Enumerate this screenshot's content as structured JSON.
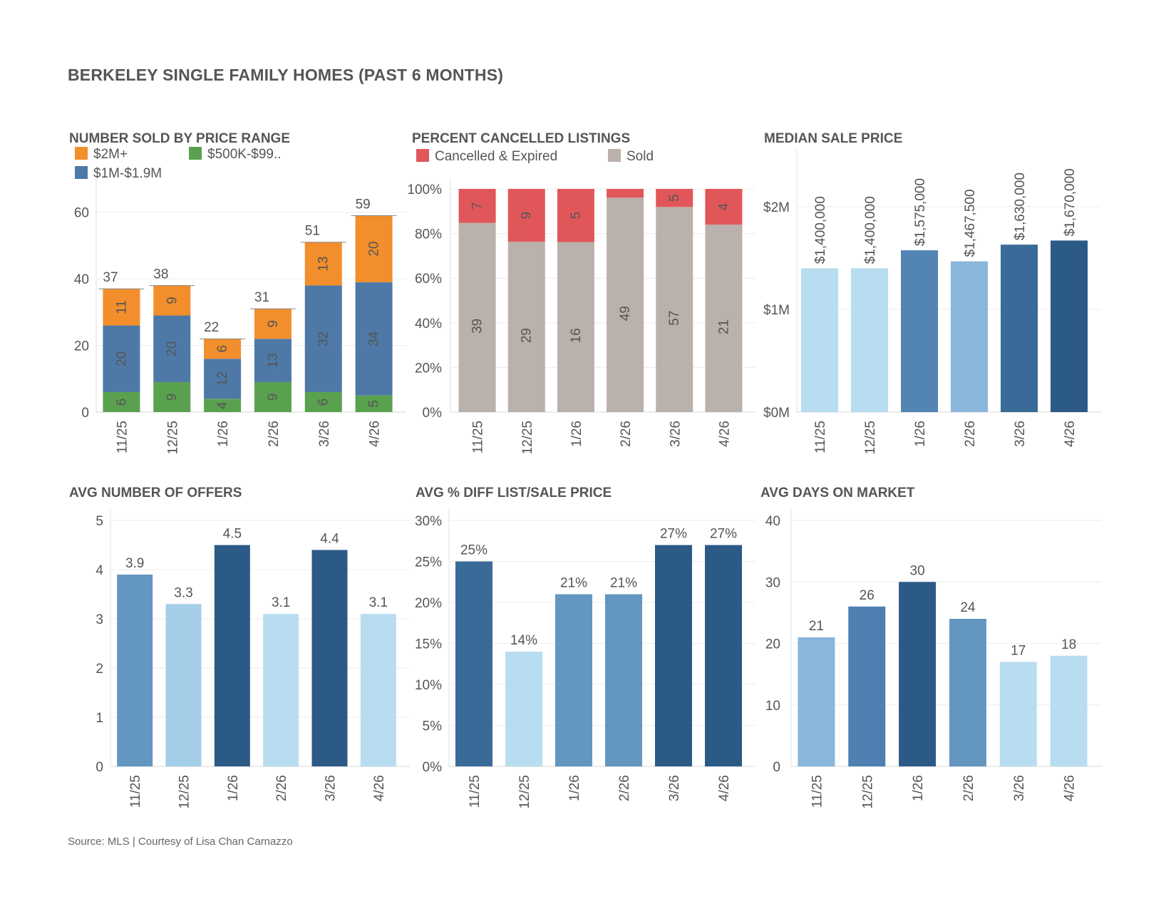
{
  "page": {
    "title": "BERKELEY SINGLE FAMILY HOMES (PAST 6 MONTHS)",
    "source": "Source: MLS | Courtesy of Lisa Chan Carnazzo"
  },
  "colors": {
    "orange": "#F28E2B",
    "blue": "#4E79A7",
    "green": "#59A14F",
    "red": "#E15759",
    "gray": "#BAB0AC",
    "navy": "#2C5A86",
    "dark_blue": "#3A6A98",
    "mid_blue": "#5A8EBB",
    "light_blue": "#A4CEE8",
    "pale_blue": "#B8DDF0"
  },
  "chart_data": [
    {
      "id": "sold",
      "type": "bar",
      "stacked": true,
      "title": "NUMBER SOLD BY PRICE RANGE",
      "categories": [
        "11/25",
        "12/25",
        "1/26",
        "2/26",
        "3/26",
        "4/26"
      ],
      "series": [
        {
          "name": "$500K-$99..",
          "color": "#59A14F",
          "values": [
            6,
            9,
            4,
            9,
            6,
            5
          ]
        },
        {
          "name": "$1M-$1.9M",
          "color": "#4E79A7",
          "values": [
            20,
            20,
            12,
            13,
            32,
            34
          ]
        },
        {
          "name": "$2M+",
          "color": "#F28E2B",
          "values": [
            11,
            9,
            6,
            9,
            13,
            20
          ]
        }
      ],
      "totals": [
        "37",
        "38",
        "22",
        "31",
        "51",
        "59"
      ],
      "ylim": [
        0,
        67
      ],
      "yticks": [
        0,
        20,
        40,
        60
      ],
      "legend": [
        {
          "label": "$2M+",
          "color": "#F28E2B"
        },
        {
          "label": "$500K-$99..",
          "color": "#59A14F"
        },
        {
          "label": "$1M-$1.9M",
          "color": "#4E79A7"
        }
      ],
      "grid": true
    },
    {
      "id": "cancelled",
      "type": "bar",
      "stacked": true,
      "percent": true,
      "title": "PERCENT CANCELLED LISTINGS",
      "categories": [
        "11/25",
        "12/25",
        "1/26",
        "2/26",
        "3/26",
        "4/26"
      ],
      "series": [
        {
          "name": "Sold",
          "color": "#BAB0AC",
          "values": [
            39,
            29,
            16,
            49,
            57,
            21
          ]
        },
        {
          "name": "Cancelled & Expired",
          "color": "#E15759",
          "values": [
            7,
            9,
            5,
            2,
            5,
            4
          ]
        }
      ],
      "segment_labels": [
        [
          "39",
          "29",
          "16",
          "49",
          "57",
          "21"
        ],
        [
          "7",
          "9",
          "5",
          "",
          "5",
          "4"
        ]
      ],
      "ylim": [
        0,
        100
      ],
      "yticks": [
        "0%",
        "20%",
        "40%",
        "60%",
        "80%",
        "100%"
      ],
      "legend": [
        {
          "label": "Cancelled & Expired",
          "color": "#E15759"
        },
        {
          "label": "Sold",
          "color": "#BAB0AC"
        }
      ],
      "grid": true
    },
    {
      "id": "median",
      "type": "bar",
      "title": "MEDIAN SALE PRICE",
      "categories": [
        "11/25",
        "12/25",
        "1/26",
        "2/26",
        "3/26",
        "4/26"
      ],
      "values": [
        1400000,
        1400000,
        1575000,
        1467500,
        1630000,
        1670000
      ],
      "labels": [
        "$1,400,000",
        "$1,400,000",
        "$1,575,000",
        "$1,467,500",
        "$1,630,000",
        "$1,670,000"
      ],
      "colors": [
        "#B8DDF0",
        "#B8DDF0",
        "#5284B4",
        "#89B6DA",
        "#3A6A98",
        "#2C5A86"
      ],
      "ylim": [
        0,
        2450000
      ],
      "yticks": [
        {
          "v": 0,
          "t": "$0M"
        },
        {
          "v": 1000000,
          "t": "$1M"
        },
        {
          "v": 2000000,
          "t": "$2M"
        }
      ],
      "grid": true
    },
    {
      "id": "offers",
      "type": "bar",
      "title": "AVG NUMBER OF OFFERS",
      "categories": [
        "11/25",
        "12/25",
        "1/26",
        "2/26",
        "3/26",
        "4/26"
      ],
      "values": [
        3.9,
        3.3,
        4.5,
        3.1,
        4.4,
        3.1
      ],
      "labels": [
        "3.9",
        "3.3",
        "4.5",
        "3.1",
        "4.4",
        "3.1"
      ],
      "colors": [
        "#6496C2",
        "#A4CEE8",
        "#2C5A86",
        "#B8DDF0",
        "#2C5A86",
        "#B8DDF0"
      ],
      "ylim": [
        0,
        5
      ],
      "yticks": [
        {
          "v": 0,
          "t": "0"
        },
        {
          "v": 1,
          "t": "1"
        },
        {
          "v": 2,
          "t": "2"
        },
        {
          "v": 3,
          "t": "3"
        },
        {
          "v": 4,
          "t": "4"
        },
        {
          "v": 5,
          "t": "5"
        }
      ],
      "grid": true
    },
    {
      "id": "diff",
      "type": "bar",
      "title": "AVG % DIFF LIST/SALE PRICE",
      "categories": [
        "11/25",
        "12/25",
        "1/26",
        "2/26",
        "3/26",
        "4/26"
      ],
      "values": [
        25,
        14,
        21,
        21,
        27,
        27
      ],
      "labels": [
        "25%",
        "14%",
        "21%",
        "21%",
        "27%",
        "27%"
      ],
      "colors": [
        "#3A6A98",
        "#B8DDF0",
        "#6496C2",
        "#6496C2",
        "#2C5A86",
        "#2C5A86"
      ],
      "ylim": [
        0,
        30
      ],
      "yticks": [
        {
          "v": 0,
          "t": "0%"
        },
        {
          "v": 5,
          "t": "5%"
        },
        {
          "v": 10,
          "t": "10%"
        },
        {
          "v": 15,
          "t": "15%"
        },
        {
          "v": 20,
          "t": "20%"
        },
        {
          "v": 25,
          "t": "25%"
        },
        {
          "v": 30,
          "t": "30%"
        }
      ],
      "grid": true
    },
    {
      "id": "dom",
      "type": "bar",
      "title": "AVG DAYS ON MARKET",
      "categories": [
        "11/25",
        "12/25",
        "1/26",
        "2/26",
        "3/26",
        "4/26"
      ],
      "values": [
        21,
        26,
        30,
        24,
        17,
        18
      ],
      "labels": [
        "21",
        "26",
        "30",
        "24",
        "17",
        "18"
      ],
      "colors": [
        "#89B6DA",
        "#4E7FB0",
        "#2C5A86",
        "#6496C2",
        "#B8DDF0",
        "#B8DDF0"
      ],
      "label_colors": [
        "#89B6DA",
        "#4E7FB0",
        "#2C5A86",
        "#6496C2",
        "#B8DDF0",
        "#B8DDF0"
      ],
      "ylim": [
        0,
        40
      ],
      "yticks": [
        {
          "v": 0,
          "t": "0"
        },
        {
          "v": 10,
          "t": "10"
        },
        {
          "v": 20,
          "t": "20"
        },
        {
          "v": 30,
          "t": "30"
        },
        {
          "v": 40,
          "t": "40"
        }
      ],
      "grid": true
    }
  ]
}
